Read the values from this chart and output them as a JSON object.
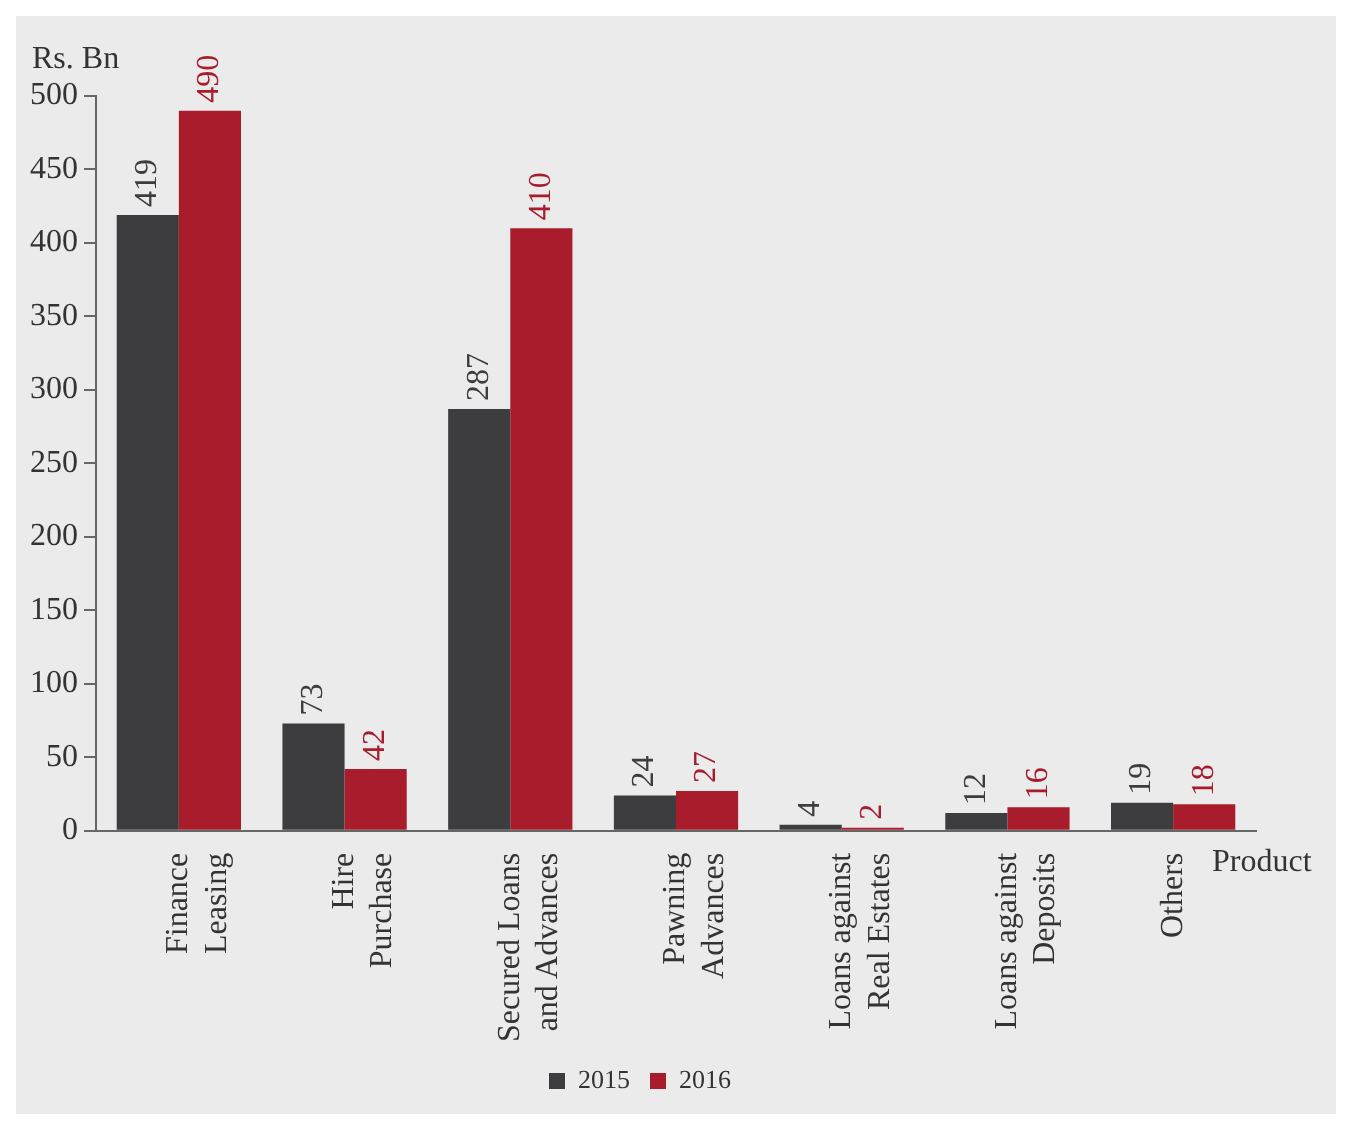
{
  "chart_data": {
    "type": "bar",
    "ylabel": "Rs. Bn",
    "xlabel": "Product",
    "categories": [
      "Finance\nLeasing",
      "Hire\nPurchase",
      "Secured Loans\nand Advances",
      "Pawning\nAdvances",
      "Loans against\nReal Estates",
      "Loans against\nDeposits",
      "Others"
    ],
    "series": [
      {
        "name": "2015",
        "color": "#3d3d3f",
        "values": [
          419,
          73,
          287,
          24,
          4,
          12,
          19
        ]
      },
      {
        "name": "2016",
        "color": "#a81c2c",
        "values": [
          490,
          42,
          410,
          27,
          2,
          16,
          18
        ]
      }
    ],
    "ylim": [
      0,
      500
    ],
    "yticks": [
      0,
      50,
      100,
      150,
      200,
      250,
      300,
      350,
      400,
      450,
      500
    ],
    "grid": false,
    "legend": "bottom",
    "data_labels": true
  }
}
